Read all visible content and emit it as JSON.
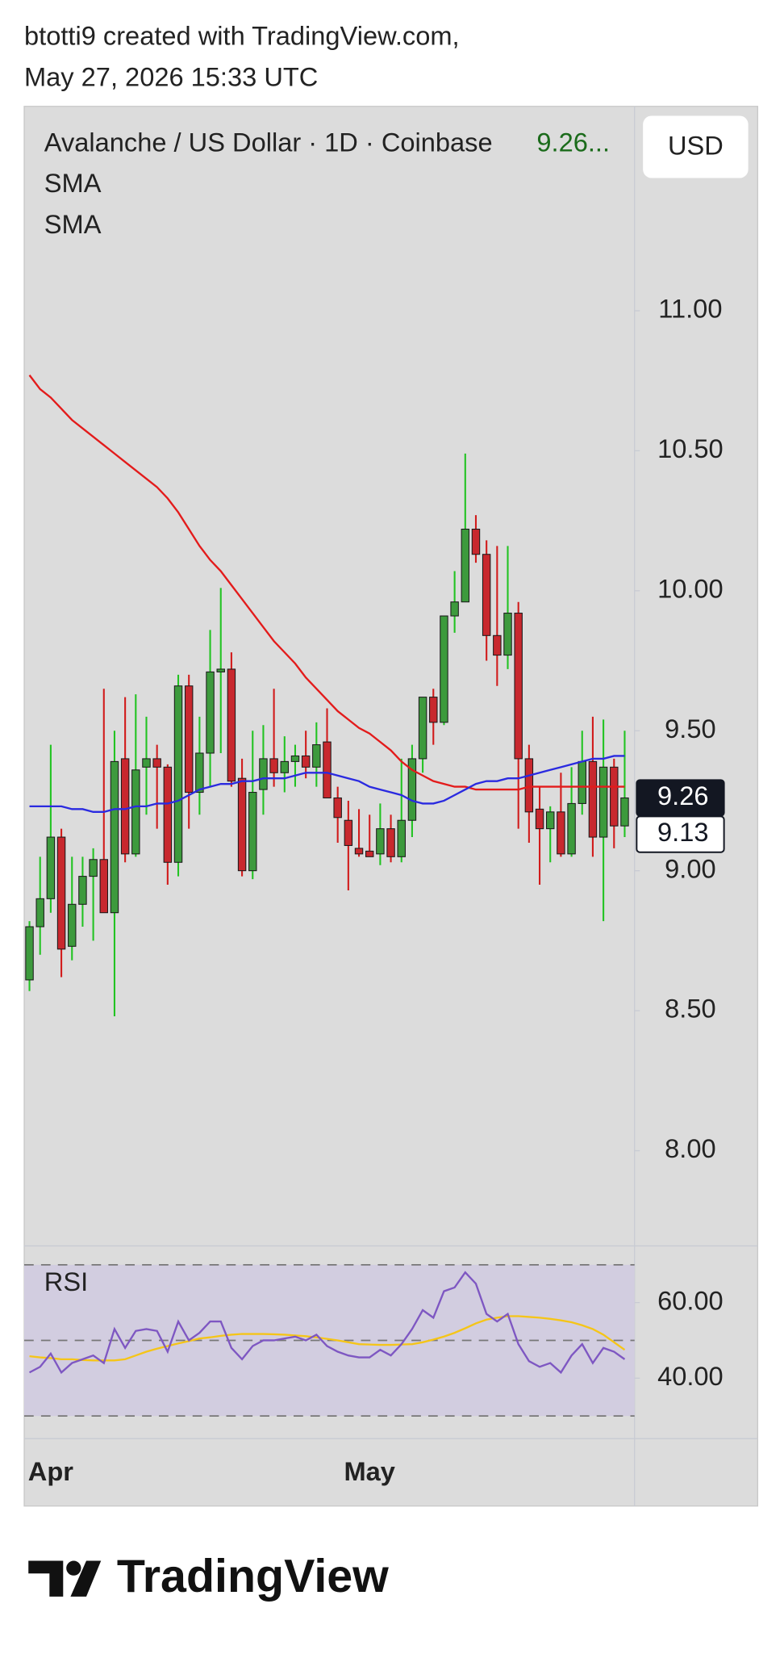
{
  "header": {
    "author_line": "btotti9 created with TradingView.com,",
    "timestamp": "May 27, 2026 15:33 UTC"
  },
  "currency_button": "USD",
  "footer": {
    "brand": "TradingView"
  },
  "chart_data": [
    {
      "type": "candlestick",
      "title": "Avalanche / US Dollar · 1D · Coinbase",
      "header_value": "9.26...",
      "x": [
        null,
        null,
        "Apr",
        null,
        null,
        null,
        null,
        null,
        null,
        null,
        null,
        null,
        null,
        null,
        null,
        null,
        null,
        null,
        null,
        null,
        null,
        null,
        null,
        null,
        null,
        null,
        null,
        null,
        null,
        null,
        null,
        null,
        "May",
        null,
        null,
        null,
        null,
        null,
        null,
        null,
        null,
        null,
        null,
        null,
        null,
        null,
        null,
        null,
        null,
        null,
        null,
        null,
        null,
        null,
        null,
        null,
        null
      ],
      "open": [
        8.61,
        8.8,
        8.9,
        9.12,
        8.73,
        8.88,
        8.98,
        9.04,
        8.85,
        9.4,
        9.06,
        9.37,
        9.4,
        9.37,
        9.03,
        9.66,
        9.28,
        9.42,
        9.71,
        9.72,
        9.33,
        9.0,
        9.29,
        9.4,
        9.35,
        9.39,
        9.41,
        9.37,
        9.46,
        9.26,
        9.18,
        9.08,
        9.07,
        9.06,
        9.15,
        9.05,
        9.18,
        9.4,
        9.62,
        9.53,
        9.91,
        9.96,
        10.22,
        10.13,
        9.84,
        9.77,
        9.92,
        9.4,
        9.22,
        9.15,
        9.21,
        9.06,
        9.24,
        9.39,
        9.12,
        9.37,
        9.16
      ],
      "high": [
        8.82,
        9.05,
        9.45,
        9.15,
        9.05,
        9.05,
        9.08,
        9.65,
        9.5,
        9.62,
        9.63,
        9.55,
        9.45,
        9.38,
        9.7,
        9.7,
        9.55,
        9.86,
        10.01,
        9.78,
        9.4,
        9.5,
        9.52,
        9.65,
        9.48,
        9.45,
        9.5,
        9.53,
        9.58,
        9.3,
        9.25,
        9.22,
        9.2,
        9.24,
        9.2,
        9.4,
        9.45,
        9.62,
        9.65,
        9.88,
        10.07,
        10.49,
        10.27,
        10.18,
        10.16,
        10.16,
        9.96,
        9.45,
        9.3,
        9.23,
        9.35,
        9.37,
        9.5,
        9.55,
        9.54,
        9.4,
        9.5
      ],
      "low": [
        8.57,
        8.7,
        8.85,
        8.62,
        8.68,
        8.8,
        8.75,
        8.85,
        8.48,
        9.03,
        9.05,
        9.2,
        9.15,
        8.95,
        8.98,
        9.15,
        9.2,
        9.3,
        9.42,
        9.3,
        8.98,
        8.97,
        9.2,
        9.3,
        9.28,
        9.3,
        9.33,
        9.3,
        9.27,
        9.1,
        8.93,
        9.05,
        9.05,
        9.02,
        9.03,
        9.03,
        9.12,
        9.35,
        9.45,
        9.52,
        9.85,
        9.96,
        10.1,
        9.75,
        9.66,
        9.72,
        9.15,
        9.1,
        8.95,
        9.03,
        9.05,
        9.05,
        9.2,
        9.05,
        8.82,
        9.08,
        9.12
      ],
      "close": [
        8.8,
        8.9,
        9.12,
        8.72,
        8.88,
        8.98,
        9.04,
        8.85,
        9.39,
        9.06,
        9.36,
        9.4,
        9.37,
        9.03,
        9.66,
        9.28,
        9.42,
        9.71,
        9.72,
        9.32,
        9.0,
        9.28,
        9.4,
        9.35,
        9.39,
        9.41,
        9.37,
        9.45,
        9.26,
        9.19,
        9.09,
        9.06,
        9.05,
        9.15,
        9.05,
        9.18,
        9.4,
        9.62,
        9.53,
        9.91,
        9.96,
        10.22,
        10.13,
        9.84,
        9.77,
        9.92,
        9.4,
        9.21,
        9.15,
        9.21,
        9.06,
        9.24,
        9.39,
        9.12,
        9.37,
        9.16,
        9.26
      ],
      "up_color": "#3d9a3d",
      "up_wick_color": "#22c322",
      "down_color": "#c8282e",
      "down_wick_color": "#d11b1b",
      "series": [
        {
          "name": "SMA",
          "color": "#e31b1b",
          "values": [
            10.77,
            10.72,
            10.69,
            10.65,
            10.61,
            10.58,
            10.55,
            10.52,
            10.49,
            10.46,
            10.43,
            10.4,
            10.37,
            10.33,
            10.28,
            10.22,
            10.16,
            10.11,
            10.07,
            10.02,
            9.97,
            9.92,
            9.87,
            9.82,
            9.78,
            9.74,
            9.69,
            9.65,
            9.61,
            9.57,
            9.54,
            9.51,
            9.49,
            9.46,
            9.43,
            9.39,
            9.36,
            9.34,
            9.32,
            9.31,
            9.3,
            9.3,
            9.29,
            9.29,
            9.29,
            9.29,
            9.29,
            9.3,
            9.3,
            9.3,
            9.3,
            9.3,
            9.3,
            9.3,
            9.3,
            9.3,
            9.3
          ]
        },
        {
          "name": "SMA",
          "color": "#2a2ae0",
          "values": [
            9.23,
            9.23,
            9.23,
            9.23,
            9.22,
            9.22,
            9.21,
            9.21,
            9.22,
            9.22,
            9.23,
            9.23,
            9.24,
            9.24,
            9.25,
            9.27,
            9.29,
            9.3,
            9.31,
            9.31,
            9.32,
            9.32,
            9.33,
            9.33,
            9.33,
            9.34,
            9.35,
            9.35,
            9.35,
            9.34,
            9.33,
            9.32,
            9.3,
            9.29,
            9.28,
            9.27,
            9.25,
            9.24,
            9.24,
            9.25,
            9.27,
            9.29,
            9.31,
            9.32,
            9.32,
            9.33,
            9.33,
            9.34,
            9.35,
            9.36,
            9.37,
            9.38,
            9.39,
            9.4,
            9.4,
            9.41,
            9.41
          ]
        }
      ],
      "price_markers": [
        {
          "value": 9.26,
          "label": "9.26"
        },
        {
          "value": 9.13,
          "label": "9.13"
        }
      ],
      "ylim": [
        7.66,
        11.73
      ],
      "yticks": [
        {
          "value": 8,
          "label": "8.00"
        },
        {
          "value": 8.5,
          "label": "8.50"
        },
        {
          "value": 9,
          "label": "9.00"
        },
        {
          "value": 9.5,
          "label": "9.50"
        },
        {
          "value": 10,
          "label": "10.00"
        },
        {
          "value": 10.5,
          "label": "10.50"
        },
        {
          "value": 11,
          "label": "11.00"
        }
      ]
    },
    {
      "type": "line",
      "series": [
        {
          "name": "RSI",
          "color": "#7e57c2",
          "values": [
            41.5,
            43,
            46.5,
            41.5,
            44,
            45,
            46,
            44,
            53,
            48,
            52.5,
            53,
            52.5,
            47,
            55,
            50,
            52,
            55,
            55,
            48,
            45,
            48.5,
            50,
            50,
            50.5,
            51,
            50,
            51.5,
            48.5,
            47,
            46,
            45.5,
            45.5,
            47.5,
            46,
            49,
            53,
            58,
            56,
            63,
            64,
            68,
            65,
            57,
            55,
            57,
            49,
            44.5,
            43,
            44,
            41.5,
            46,
            49,
            44,
            48,
            47,
            45
          ]
        },
        {
          "color": "#f5c518",
          "values": [
            45.8,
            45.5,
            45.3,
            45,
            45,
            44.8,
            44.7,
            44.7,
            44.7,
            45,
            46,
            47,
            47.8,
            48.5,
            49.2,
            49.8,
            50.5,
            50.8,
            51.2,
            51.5,
            51.7,
            51.7,
            51.7,
            51.6,
            51.5,
            51.3,
            51.1,
            50.8,
            50.4,
            50,
            49.5,
            49,
            48.9,
            48.8,
            48.8,
            48.9,
            49,
            49.5,
            50.2,
            51,
            52,
            53.2,
            54.5,
            55.5,
            56,
            56.4,
            56.4,
            56.2,
            56,
            55.7,
            55.3,
            54.8,
            54,
            53,
            51.5,
            49.5,
            47.5
          ]
        }
      ],
      "levels": [
        30,
        50,
        70
      ],
      "band_color": "#d2cde0",
      "ylim": [
        24,
        75
      ],
      "yticks": [
        {
          "value": 40,
          "label": "40.00"
        },
        {
          "value": 60,
          "label": "60.00"
        }
      ]
    }
  ]
}
